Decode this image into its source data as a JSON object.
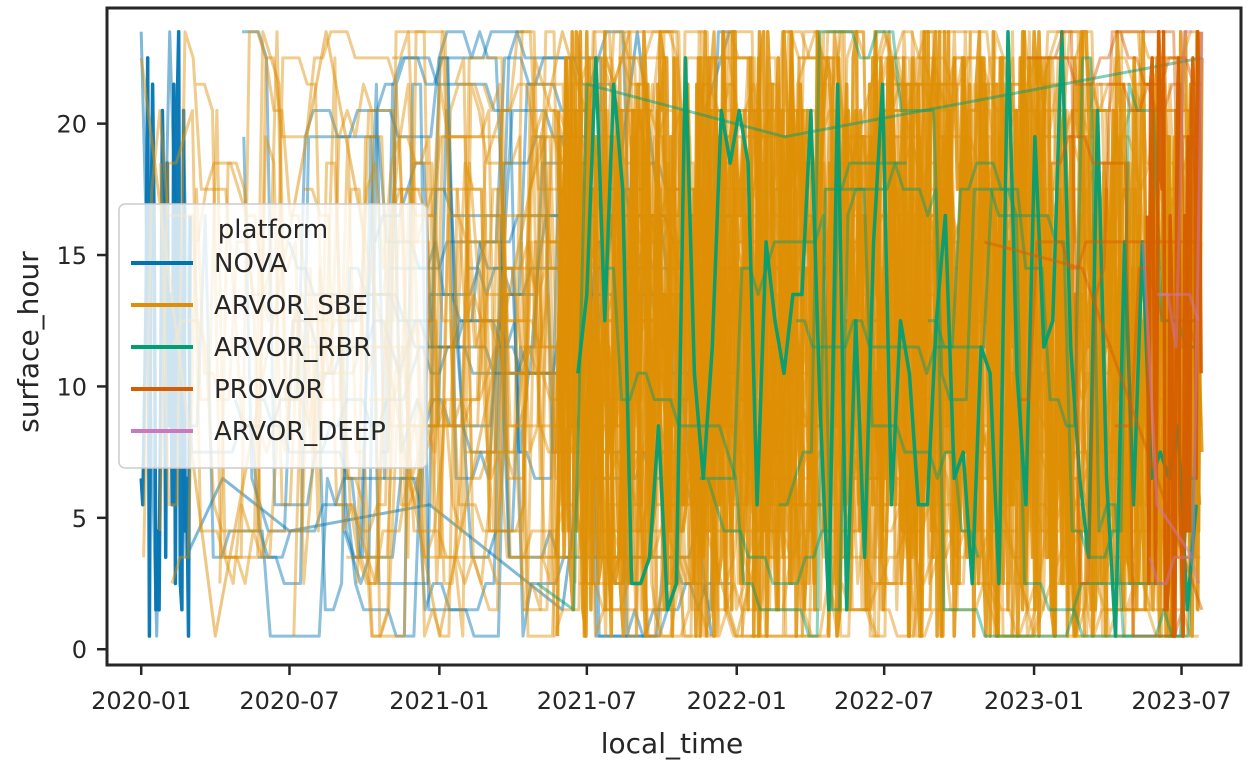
{
  "chart_data": {
    "type": "line",
    "xlabel": "local_time",
    "ylabel": "surface_hour",
    "x_ticks": [
      "2020-01",
      "2020-07",
      "2021-01",
      "2021-07",
      "2022-01",
      "2022-07",
      "2023-01",
      "2023-07"
    ],
    "xlim": [
      "2019-11-20",
      "2023-09-12"
    ],
    "y_ticks": [
      0,
      5,
      10,
      15,
      20
    ],
    "ylim": [
      -0.6,
      24.4
    ],
    "grid": false,
    "legend": {
      "title": "platform",
      "position": "center-left",
      "entries": [
        "NOVA",
        "ARVOR_SBE",
        "ARVOR_RBR",
        "PROVOR",
        "ARVOR_DEEP"
      ]
    },
    "series": [
      {
        "name": "NOVA",
        "color": "#0173b2",
        "date_range": [
          "2020-01-01",
          "2021-12-31"
        ],
        "dense_range": [
          "2020-01-01",
          "2020-03-01"
        ],
        "values": [
          {
            "x": "2020-01-01",
            "y": 23.5
          },
          {
            "x": "2020-01-20",
            "y": 0.5
          },
          {
            "x": "2020-02-05",
            "y": 23.5
          },
          {
            "x": "2020-02-25",
            "y": 3.5
          },
          {
            "x": "2020-04-10",
            "y": 6.5
          },
          {
            "x": "2020-07-01",
            "y": 4.5
          },
          {
            "x": "2020-12-20",
            "y": 5.5
          },
          {
            "x": "2021-06-01",
            "y": 1.5
          },
          {
            "x": "2021-09-01",
            "y": 23.5
          },
          {
            "x": "2021-12-01",
            "y": 0.5
          }
        ]
      },
      {
        "name": "ARVOR_SBE",
        "color": "#de8f05",
        "date_range": [
          "2020-01-01",
          "2023-07-26"
        ],
        "dense_range": [
          "2021-05-25",
          "2023-07-26"
        ],
        "values": [
          {
            "x": "2020-01-01",
            "y": 22.5
          },
          {
            "x": "2020-04-01",
            "y": 0.5
          },
          {
            "x": "2020-08-15",
            "y": 23.5
          },
          {
            "x": "2021-01-01",
            "y": 0.5
          },
          {
            "x": "2021-06-01",
            "y": 23.5
          },
          {
            "x": "2022-01-01",
            "y": 0.5
          },
          {
            "x": "2022-07-01",
            "y": 23.5
          },
          {
            "x": "2023-01-01",
            "y": 0.5
          },
          {
            "x": "2023-07-26",
            "y": 20.5
          }
        ]
      },
      {
        "name": "ARVOR_RBR",
        "color": "#029e73",
        "date_range": [
          "2021-05-01",
          "2023-07-26"
        ],
        "dense_range": [
          "2021-06-20",
          "2023-07-26"
        ],
        "values": [
          {
            "x": "2021-05-01",
            "y": 2.5
          },
          {
            "x": "2021-06-15",
            "y": 1.5
          },
          {
            "x": "2021-07-01",
            "y": 21.5
          },
          {
            "x": "2022-03-01",
            "y": 19.5
          },
          {
            "x": "2023-07-26",
            "y": 22.5
          }
        ]
      },
      {
        "name": "PROVOR",
        "color": "#d55e00",
        "date_range": [
          "2022-11-01",
          "2023-07-26"
        ],
        "dense_range": [
          "2023-05-20",
          "2023-07-26"
        ],
        "values": [
          {
            "x": "2022-11-01",
            "y": 15.5
          },
          {
            "x": "2023-03-01",
            "y": 14.5
          },
          {
            "x": "2023-06-01",
            "y": 6.5
          },
          {
            "x": "2023-07-26",
            "y": 1.5
          }
        ]
      },
      {
        "name": "ARVOR_DEEP",
        "color": "#cc78bc",
        "date_range": [
          "2023-05-15",
          "2023-07-26"
        ],
        "dense_range": [],
        "values": [
          {
            "x": "2023-05-15",
            "y": 15.5
          },
          {
            "x": "2023-06-01",
            "y": 5.5
          },
          {
            "x": "2023-07-15",
            "y": 3.5
          },
          {
            "x": "2023-07-26",
            "y": 23.5
          }
        ]
      }
    ]
  }
}
